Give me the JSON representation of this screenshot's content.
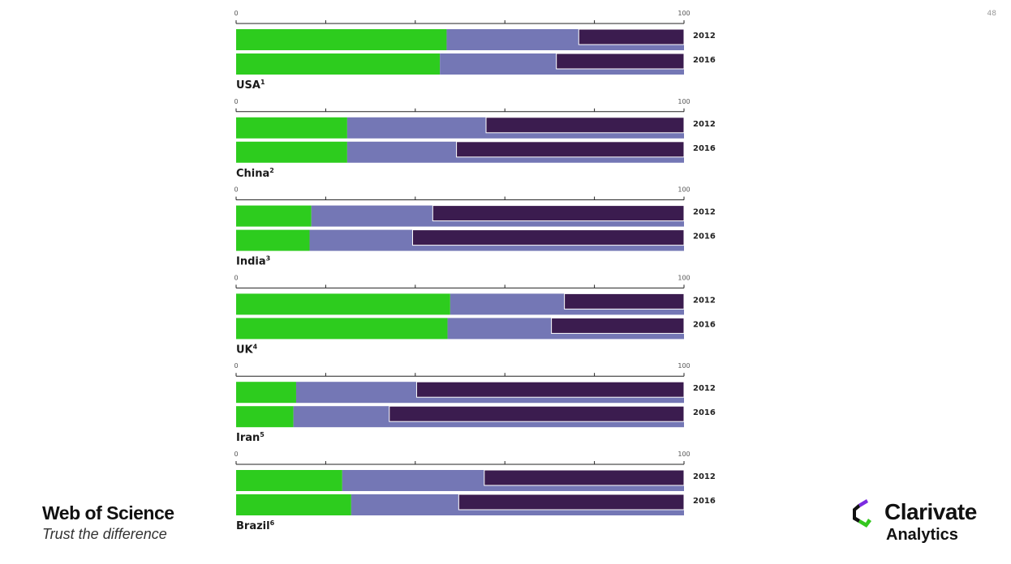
{
  "page": {
    "number": "48"
  },
  "branding": {
    "wos_title": "Web of Science",
    "wos_tagline": "Trust the difference",
    "clarivate_name": "Clarivate",
    "clarivate_sub": "Analytics"
  },
  "colors": {
    "segment_1": "#2dcc1e",
    "segment_2": "#7477b5",
    "segment_3": "#3b1c4f",
    "axis": "#222222"
  },
  "chart_data": {
    "type": "bar",
    "orientation": "horizontal",
    "stacked": true,
    "xlim": [
      0,
      100
    ],
    "tick_labels": [
      "0",
      "100"
    ],
    "grid": false,
    "legend": "none",
    "panels": [
      {
        "country": "USA",
        "sup": "1",
        "rows": [
          {
            "year": "2012",
            "values": [
              47,
              29.5,
              23.5
            ]
          },
          {
            "year": "2016",
            "values": [
              45.5,
              26,
              28.5
            ]
          }
        ]
      },
      {
        "country": "China",
        "sup": "2",
        "rows": [
          {
            "year": "2012",
            "values": [
              24.8,
              31,
              44.2
            ]
          },
          {
            "year": "2016",
            "values": [
              24.8,
              24.4,
              50.8
            ]
          }
        ]
      },
      {
        "country": "India",
        "sup": "3",
        "rows": [
          {
            "year": "2012",
            "values": [
              16.8,
              27.1,
              56.1
            ]
          },
          {
            "year": "2016",
            "values": [
              16.4,
              23,
              60.6
            ]
          }
        ]
      },
      {
        "country": "UK",
        "sup": "4",
        "rows": [
          {
            "year": "2012",
            "values": [
              47.8,
              25.5,
              26.7
            ]
          },
          {
            "year": "2016",
            "values": [
              47.2,
              23.2,
              29.6
            ]
          }
        ]
      },
      {
        "country": "Iran",
        "sup": "5",
        "rows": [
          {
            "year": "2012",
            "values": [
              13.4,
              26.9,
              59.7
            ]
          },
          {
            "year": "2016",
            "values": [
              12.8,
              21.4,
              65.8
            ]
          }
        ]
      },
      {
        "country": "Brazil",
        "sup": "6",
        "rows": [
          {
            "year": "2012",
            "values": [
              23.7,
              31.7,
              44.6
            ]
          },
          {
            "year": "2016",
            "values": [
              25.7,
              24,
              50.3
            ]
          }
        ]
      }
    ]
  }
}
